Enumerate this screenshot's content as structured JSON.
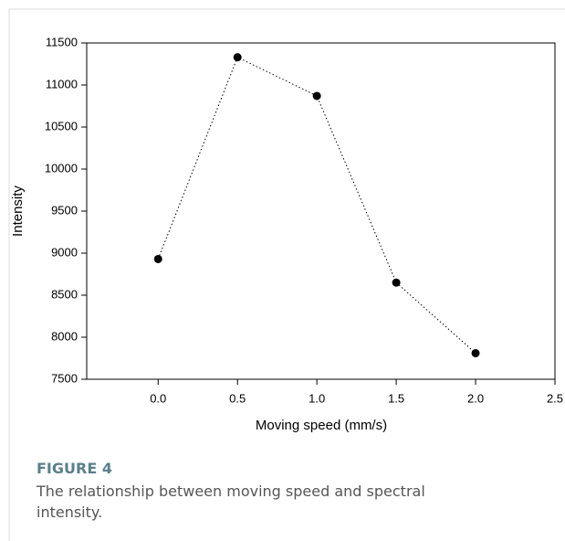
{
  "chart_data": {
    "type": "line",
    "x": [
      0,
      0.5,
      1,
      1.5,
      2
    ],
    "values": [
      8930,
      11330,
      10870,
      8650,
      7810
    ],
    "color": "#000000",
    "line_style": "dotted",
    "xlabel": "Moving speed (mm/s)",
    "ylabel": "Intensity",
    "xlim": [
      -0.45,
      2.5
    ],
    "xticks": [
      {
        "value": 0,
        "label": "0.0"
      },
      0.5,
      {
        "value": 1,
        "label": "1.0"
      },
      1.5,
      {
        "value": 2,
        "label": "2.0"
      },
      2.5
    ],
    "ylim": [
      7500,
      11500
    ],
    "yticks": [
      7500,
      8000,
      8500,
      9000,
      9500,
      10000,
      10500,
      11000,
      11500
    ],
    "figure_label": "FIGURE 4",
    "caption": "The relationship between moving speed and spectral intensity."
  }
}
